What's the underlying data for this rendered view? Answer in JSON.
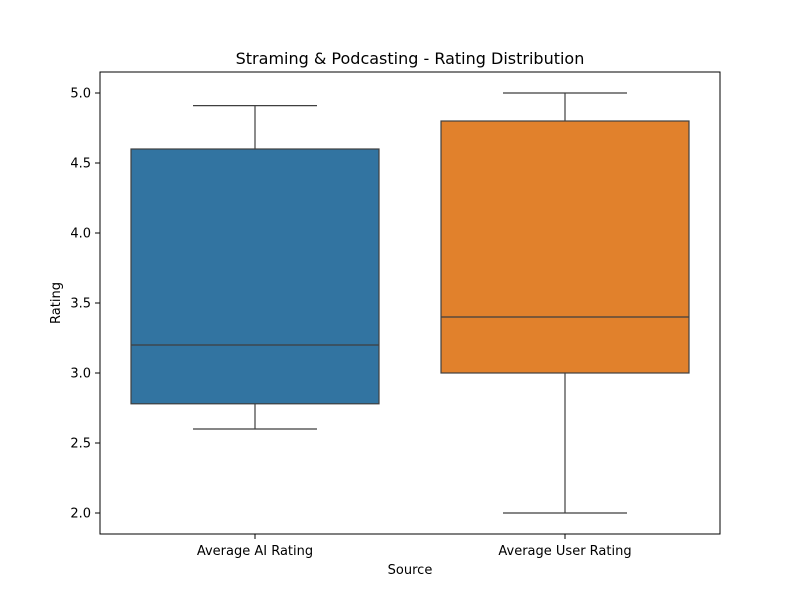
{
  "chart_data": {
    "type": "box",
    "title": "Straming & Podcasting - Rating Distribution",
    "xlabel": "Source",
    "ylabel": "Rating",
    "ylim": [
      1.85,
      5.15
    ],
    "yticks": [
      "2.0",
      "2.5",
      "3.0",
      "3.5",
      "4.0",
      "4.5",
      "5.0"
    ],
    "grid": false,
    "categories": [
      "Average AI Rating",
      "Average User Rating"
    ],
    "boxes": [
      {
        "category": "Average AI Rating",
        "color": "#3274a1",
        "min": 2.6,
        "q1": 2.78,
        "median": 3.2,
        "q3": 4.6,
        "max": 4.91
      },
      {
        "category": "Average User Rating",
        "color": "#e1812c",
        "min": 2.0,
        "q1": 3.0,
        "median": 3.4,
        "q3": 4.8,
        "max": 5.0
      }
    ]
  }
}
